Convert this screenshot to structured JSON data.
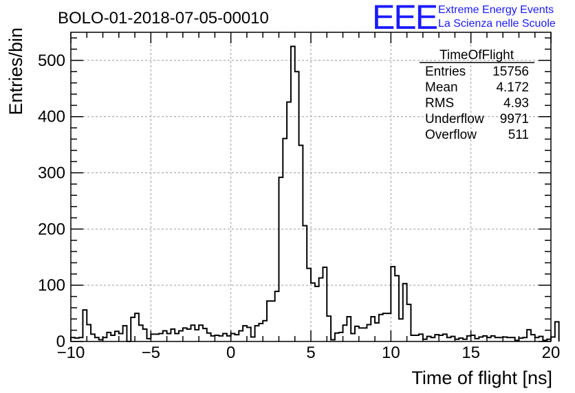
{
  "chart_data": {
    "type": "bar",
    "title": "BOLO-01-2018-07-05-00010",
    "xlabel": "Time of flight [ns]",
    "ylabel": "Entries/bin",
    "xlim": [
      -10,
      20
    ],
    "ylim": [
      0,
      550
    ],
    "bin_width": 0.25,
    "x_ticks": [
      "−10",
      "−5",
      "0",
      "5",
      "10",
      "15",
      "20"
    ],
    "y_ticks": [
      "0",
      "100",
      "200",
      "300",
      "400",
      "500"
    ],
    "grid": true,
    "values": [
      7,
      6,
      7,
      56,
      30,
      13,
      7,
      3,
      7,
      16,
      11,
      18,
      14,
      28,
      0,
      43,
      50,
      29,
      22,
      5,
      13,
      13,
      14,
      19,
      14,
      22,
      14,
      19,
      24,
      22,
      29,
      21,
      29,
      23,
      15,
      10,
      11,
      10,
      14,
      10,
      14,
      12,
      19,
      28,
      25,
      8,
      28,
      32,
      37,
      72,
      72,
      89,
      292,
      361,
      426,
      525,
      480,
      349,
      206,
      130,
      104,
      98,
      113,
      132,
      45,
      3,
      15,
      16,
      29,
      44,
      14,
      27,
      24,
      24,
      30,
      44,
      33,
      48,
      50,
      50,
      133,
      117,
      40,
      103,
      66,
      11,
      11,
      13,
      4,
      9,
      7,
      12,
      11,
      13,
      7,
      9,
      4,
      6,
      4,
      10,
      11,
      5,
      8,
      10,
      7,
      10,
      7,
      7,
      8,
      7,
      7,
      2,
      6,
      7,
      21,
      12,
      7,
      9,
      2,
      4,
      8,
      35
    ]
  },
  "stats": {
    "title": "TimeOfFlight",
    "rows": [
      {
        "label": "Entries",
        "value": "15756"
      },
      {
        "label": "Mean",
        "value": "4.172"
      },
      {
        "label": "RMS",
        "value": "4.93"
      },
      {
        "label": "Underflow",
        "value": "9971"
      },
      {
        "label": "Overflow",
        "value": "511"
      }
    ]
  },
  "logo": {
    "mark": "EEE",
    "line1": "Extreme Energy Events",
    "line2": "La Scienza nelle Scuole",
    "color": "#1a1aff"
  }
}
